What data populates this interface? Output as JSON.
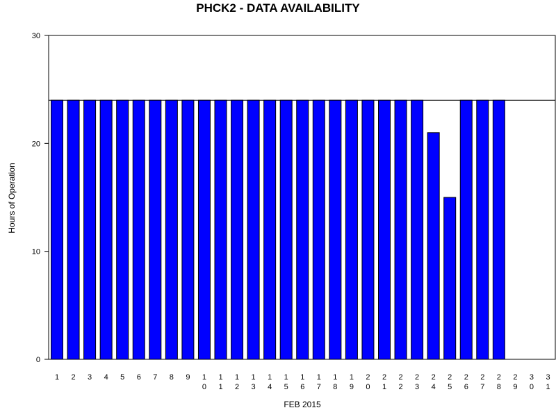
{
  "chart_data": {
    "type": "bar",
    "title": "PHCK2 - DATA AVAILABILITY",
    "xlabel": "FEB 2015",
    "ylabel": "Hours of Operation",
    "ylim": [
      0,
      30
    ],
    "yticks": [
      "0",
      "10",
      "20",
      "30"
    ],
    "reference_line": 24,
    "categories": [
      "1",
      "2",
      "3",
      "4",
      "5",
      "6",
      "7",
      "8",
      "9",
      "10",
      "11",
      "12",
      "13",
      "14",
      "15",
      "16",
      "17",
      "18",
      "19",
      "20",
      "21",
      "22",
      "23",
      "24",
      "25",
      "26",
      "27",
      "28",
      "29",
      "30",
      "31"
    ],
    "values": [
      24,
      24,
      24,
      24,
      24,
      24,
      24,
      24,
      24,
      24,
      24,
      24,
      24,
      24,
      24,
      24,
      24,
      24,
      24,
      24,
      24,
      24,
      24,
      21,
      15,
      24,
      24,
      24,
      null,
      null,
      null
    ],
    "bar_color": "#0000ff",
    "grid": false
  }
}
